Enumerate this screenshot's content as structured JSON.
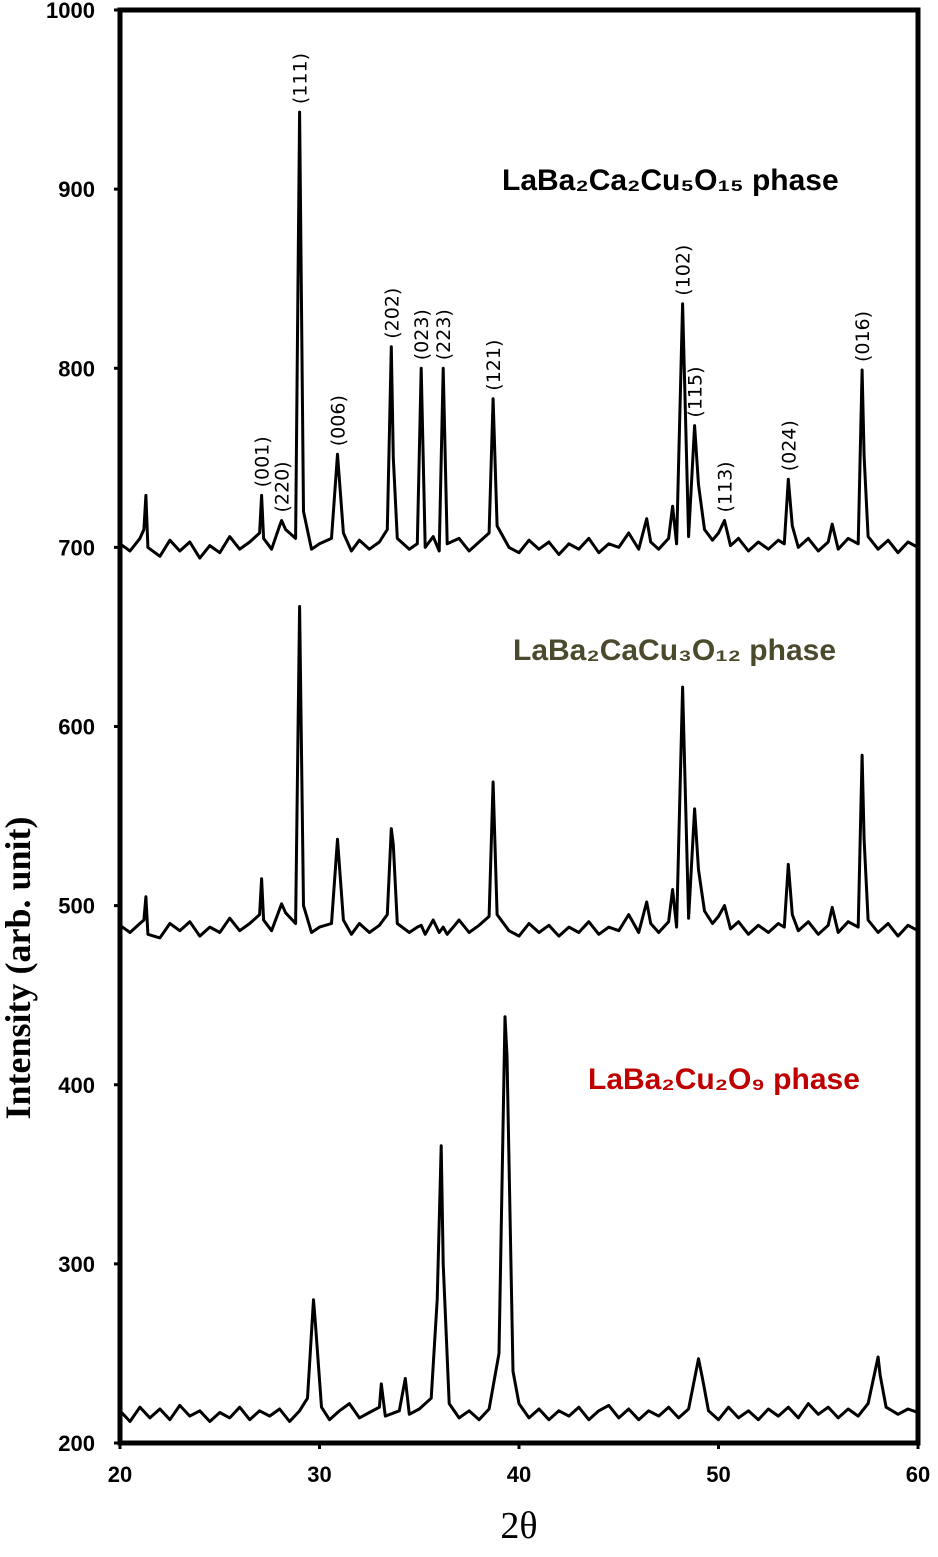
{
  "chart_data": {
    "type": "line",
    "xlabel": "2θ",
    "ylabel": "Intensity (arb. unit)",
    "xlim": [
      20,
      60
    ],
    "xticks": [
      20,
      30,
      40,
      50,
      60
    ],
    "ylim": [
      200,
      1000
    ],
    "yticks": [
      200,
      300,
      400,
      500,
      600,
      700,
      800,
      900,
      1000
    ],
    "series": [
      {
        "name": "LaBa₂Ca₂Cu₅O₁₅ phase",
        "color": "#000000",
        "label_color": "#000000",
        "x": [
          20,
          20.5,
          21,
          21.2,
          21.3,
          21.4,
          22,
          22.5,
          23,
          23.5,
          24,
          24.5,
          25,
          25.5,
          26,
          26.5,
          27,
          27.1,
          27.2,
          27.6,
          28,
          28.1,
          28.3,
          28.8,
          29.0,
          29.2,
          29.6,
          30,
          30.6,
          30.9,
          31.2,
          31.6,
          32,
          32.5,
          33,
          33.4,
          33.6,
          33.7,
          33.9,
          34.5,
          34.9,
          35.1,
          35.3,
          35.7,
          36,
          36.2,
          36.4,
          37,
          37.5,
          38,
          38.5,
          38.7,
          38.9,
          39.5,
          40,
          40.5,
          41,
          41.5,
          42,
          42.5,
          43,
          43.5,
          44,
          44.5,
          45,
          45.5,
          46,
          46.4,
          46.6,
          47,
          47.5,
          47.7,
          47.9,
          48.2,
          48.5,
          48.8,
          49.0,
          49.3,
          49.7,
          50,
          50.3,
          50.6,
          51,
          51.5,
          52,
          52.5,
          53,
          53.3,
          53.5,
          53.7,
          54,
          54.5,
          55,
          55.5,
          55.7,
          56,
          56.5,
          57,
          57.2,
          57.3,
          57.5,
          58,
          58.5,
          59,
          59.5,
          60
        ],
        "values": [
          702,
          698,
          705,
          710,
          729,
          700,
          695,
          704,
          698,
          703,
          694,
          701,
          697,
          706,
          699,
          703,
          708,
          729,
          705,
          699,
          712,
          715,
          710,
          705,
          943,
          720,
          699,
          702,
          705,
          752,
          708,
          698,
          704,
          699,
          703,
          710,
          812,
          750,
          705,
          699,
          702,
          800,
          700,
          706,
          698,
          800,
          702,
          705,
          698,
          703,
          708,
          783,
          712,
          700,
          697,
          704,
          699,
          703,
          696,
          702,
          699,
          705,
          697,
          702,
          700,
          708,
          699,
          716,
          703,
          699,
          705,
          723,
          702,
          836,
          706,
          768,
          735,
          710,
          704,
          708,
          715,
          701,
          705,
          698,
          703,
          699,
          704,
          702,
          738,
          712,
          700,
          705,
          698,
          703,
          713,
          699,
          705,
          702,
          799,
          751,
          706,
          699,
          704,
          697,
          703,
          700
        ]
      },
      {
        "name": "LaBa₂CaCu₃O₁₂ phase",
        "color": "#000000",
        "label_color": "#4b4a2c",
        "x": [
          20,
          20.5,
          21,
          21.2,
          21.3,
          21.4,
          22,
          22.5,
          23,
          23.5,
          24,
          24.5,
          25,
          25.5,
          26,
          26.5,
          27,
          27.1,
          27.2,
          27.6,
          28,
          28.1,
          28.3,
          28.8,
          29.0,
          29.2,
          29.6,
          30,
          30.6,
          30.9,
          31.2,
          31.6,
          32,
          32.5,
          33,
          33.4,
          33.6,
          33.7,
          33.9,
          34.5,
          34.9,
          35.1,
          35.3,
          35.7,
          36,
          36.2,
          36.4,
          37,
          37.5,
          38,
          38.5,
          38.7,
          38.9,
          39.5,
          40,
          40.5,
          41,
          41.5,
          42,
          42.5,
          43,
          43.5,
          44,
          44.5,
          45,
          45.5,
          46,
          46.4,
          46.6,
          47,
          47.5,
          47.7,
          47.9,
          48.2,
          48.5,
          48.8,
          49.0,
          49.3,
          49.7,
          50,
          50.3,
          50.6,
          51,
          51.5,
          52,
          52.5,
          53,
          53.3,
          53.5,
          53.7,
          54,
          54.5,
          55,
          55.5,
          55.7,
          56,
          56.5,
          57,
          57.2,
          57.3,
          57.5,
          58,
          58.5,
          59,
          59.5,
          60
        ],
        "values": [
          489,
          485,
          490,
          492,
          505,
          484,
          482,
          490,
          486,
          491,
          483,
          488,
          485,
          493,
          486,
          490,
          495,
          515,
          492,
          486,
          498,
          501,
          496,
          490,
          667,
          500,
          485,
          488,
          490,
          537,
          492,
          484,
          490,
          485,
          489,
          495,
          543,
          534,
          490,
          485,
          488,
          489,
          484,
          492,
          485,
          488,
          484,
          492,
          485,
          489,
          494,
          569,
          495,
          486,
          483,
          490,
          485,
          489,
          483,
          488,
          485,
          491,
          484,
          488,
          486,
          495,
          485,
          502,
          490,
          485,
          491,
          509,
          488,
          622,
          493,
          554,
          520,
          497,
          490,
          494,
          500,
          487,
          491,
          484,
          489,
          485,
          490,
          488,
          523,
          495,
          486,
          491,
          484,
          489,
          499,
          485,
          491,
          488,
          584,
          537,
          492,
          485,
          490,
          483,
          489,
          486
        ]
      },
      {
        "name": "LaBa₂Cu₂O₉ phase",
        "color": "#000000",
        "label_color": "#c00000",
        "x": [
          20,
          20.5,
          21,
          21.5,
          22,
          22.5,
          23,
          23.5,
          24,
          24.5,
          25,
          25.5,
          26,
          26.5,
          27,
          27.5,
          28,
          28.5,
          29,
          29.4,
          29.7,
          29.8,
          30.1,
          30.5,
          31,
          31.5,
          32,
          32.5,
          33,
          33.1,
          33.3,
          34,
          34.3,
          34.5,
          35,
          35.6,
          35.9,
          36.1,
          36.2,
          36.5,
          37,
          37.5,
          38,
          38.5,
          39,
          39.3,
          39.4,
          39.7,
          40,
          40.5,
          41,
          41.5,
          42,
          42.5,
          43,
          43.5,
          44,
          44.5,
          45,
          45.5,
          46,
          46.5,
          47,
          47.5,
          48,
          48.5,
          49,
          49.2,
          49.5,
          50,
          50.5,
          51,
          51.5,
          52,
          52.5,
          53,
          53.5,
          54,
          54.5,
          55,
          55.5,
          56,
          56.5,
          57,
          57.5,
          58,
          58.1,
          58.4,
          59,
          59.5,
          60
        ],
        "values": [
          218,
          212,
          220,
          214,
          219,
          213,
          221,
          215,
          218,
          212,
          217,
          214,
          220,
          213,
          218,
          215,
          219,
          212,
          218,
          225,
          280,
          266,
          220,
          213,
          218,
          222,
          214,
          217,
          220,
          233,
          215,
          218,
          236,
          216,
          219,
          225,
          280,
          366,
          300,
          222,
          214,
          218,
          213,
          219,
          250,
          438,
          416,
          240,
          222,
          214,
          219,
          213,
          218,
          215,
          220,
          213,
          218,
          221,
          214,
          219,
          213,
          218,
          215,
          220,
          214,
          219,
          247,
          236,
          218,
          213,
          220,
          214,
          218,
          213,
          219,
          215,
          220,
          214,
          222,
          216,
          220,
          214,
          219,
          215,
          222,
          248,
          238,
          220,
          216,
          219,
          217
        ]
      }
    ],
    "peak_labels": [
      {
        "text": "(001)",
        "x": 27.1
      },
      {
        "text": "(220)",
        "x": 28.1
      },
      {
        "text": "(111)",
        "x": 29.0
      },
      {
        "text": "(006)",
        "x": 30.9
      },
      {
        "text": "(202)",
        "x": 33.6
      },
      {
        "text": "(023)",
        "x": 35.1
      },
      {
        "text": "(223)",
        "x": 36.2
      },
      {
        "text": "(121)",
        "x": 38.7
      },
      {
        "text": "(102)",
        "x": 48.2
      },
      {
        "text": "(115)",
        "x": 48.8
      },
      {
        "text": "(113)",
        "x": 50.3
      },
      {
        "text": "(024)",
        "x": 53.5
      },
      {
        "text": "(016)",
        "x": 57.2
      }
    ]
  }
}
